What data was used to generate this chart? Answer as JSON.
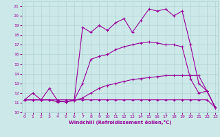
{
  "xlabel": "Windchill (Refroidissement éolien,°C)",
  "xlim": [
    0,
    23
  ],
  "ylim": [
    10,
    21.5
  ],
  "xticks": [
    0,
    1,
    2,
    3,
    4,
    5,
    6,
    7,
    8,
    9,
    10,
    11,
    12,
    13,
    14,
    15,
    16,
    17,
    18,
    19,
    20,
    21,
    22,
    23
  ],
  "yticks": [
    10,
    11,
    12,
    13,
    14,
    15,
    16,
    17,
    18,
    19,
    20,
    21
  ],
  "bg_color": "#cce8e8",
  "line_color": "#990099",
  "grid_color": "#aacfcf",
  "lines": [
    {
      "x": [
        0,
        1,
        2,
        3,
        4,
        5,
        6,
        7,
        8,
        9,
        10,
        11,
        12,
        13,
        14,
        15,
        16,
        17,
        18,
        19,
        20,
        21,
        22,
        23
      ],
      "y": [
        11.3,
        11.3,
        11.3,
        11.3,
        11.3,
        11.3,
        11.3,
        11.3,
        11.3,
        11.3,
        11.3,
        11.3,
        11.3,
        11.3,
        11.3,
        11.3,
        11.3,
        11.3,
        11.3,
        11.3,
        11.3,
        11.3,
        11.3,
        10.5
      ]
    },
    {
      "x": [
        0,
        1,
        2,
        3,
        4,
        5,
        6,
        7,
        8,
        9,
        10,
        11,
        12,
        13,
        14,
        15,
        16,
        17,
        18,
        19,
        20,
        21,
        22,
        23
      ],
      "y": [
        11.3,
        11.3,
        11.3,
        11.3,
        11.1,
        11.1,
        11.2,
        11.5,
        12.0,
        12.5,
        12.8,
        13.0,
        13.2,
        13.4,
        13.5,
        13.6,
        13.7,
        13.8,
        13.8,
        13.8,
        13.8,
        13.8,
        12.2,
        10.5
      ]
    },
    {
      "x": [
        0,
        1,
        2,
        3,
        4,
        5,
        6,
        7,
        8,
        9,
        10,
        11,
        12,
        13,
        14,
        15,
        16,
        17,
        18,
        19,
        20,
        21,
        22,
        23
      ],
      "y": [
        11.3,
        11.3,
        11.3,
        11.3,
        11.1,
        11.1,
        11.3,
        13.0,
        15.5,
        15.8,
        16.0,
        16.5,
        16.8,
        17.0,
        17.2,
        17.3,
        17.2,
        17.0,
        17.0,
        16.8,
        13.5,
        12.0,
        12.2,
        10.5
      ]
    },
    {
      "x": [
        0,
        1,
        2,
        3,
        4,
        5,
        6,
        7,
        8,
        9,
        10,
        11,
        12,
        13,
        14,
        15,
        16,
        17,
        18,
        19,
        20,
        21,
        22,
        23
      ],
      "y": [
        11.3,
        12.0,
        11.3,
        12.5,
        11.2,
        11.1,
        11.3,
        18.8,
        18.3,
        19.0,
        18.5,
        19.3,
        19.7,
        18.3,
        19.5,
        20.7,
        20.5,
        20.7,
        20.0,
        20.5,
        17.0,
        13.0,
        12.2,
        10.5
      ]
    }
  ]
}
